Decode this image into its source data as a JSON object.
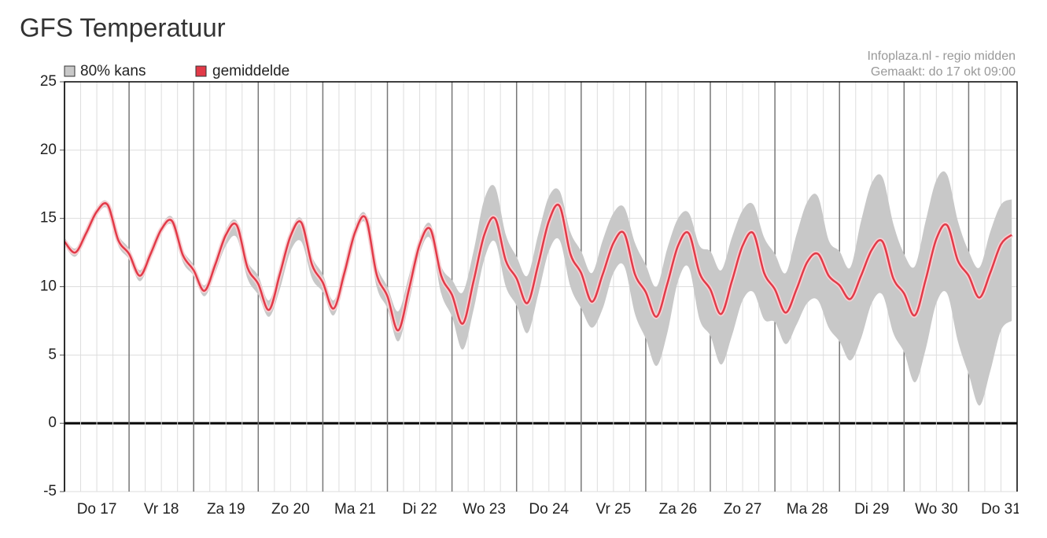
{
  "chart_data": {
    "type": "line",
    "title": "GFS Temperatuur",
    "annotations": [
      "Infoplaza.nl - regio midden",
      "Gemaakt: do 17 okt 09:00"
    ],
    "categories": [
      "Do 17",
      "Vr 18",
      "Za 19",
      "Zo 20",
      "Ma 21",
      "Di 22",
      "Wo 23",
      "Do 24",
      "Vr 25",
      "Za 26",
      "Zo 27",
      "Ma 28",
      "Di 29",
      "Wo 30",
      "Do 31"
    ],
    "xlim": [
      0,
      354
    ],
    "xticks": [
      0,
      6,
      12,
      18,
      24,
      30,
      36,
      42,
      48,
      54,
      60,
      66,
      72,
      78,
      84,
      90,
      96,
      102,
      108,
      114,
      120,
      126,
      132,
      138,
      144,
      150,
      156,
      162,
      168,
      174,
      180,
      186,
      192,
      198,
      204,
      210,
      216,
      222,
      228,
      234,
      240,
      246,
      252,
      258,
      264,
      270,
      276,
      282,
      288,
      294,
      300,
      306,
      312,
      318,
      324,
      330,
      336,
      342,
      348
    ],
    "ylim": [
      -5,
      25
    ],
    "yticks": [
      -5,
      0,
      5,
      10,
      15,
      20,
      25
    ],
    "grid": true,
    "x": [
      0,
      4,
      8,
      12,
      16,
      20,
      24,
      28,
      32,
      36,
      40,
      44,
      48,
      52,
      56,
      60,
      64,
      68,
      72,
      76,
      80,
      84,
      88,
      92,
      96,
      100,
      104,
      108,
      112,
      116,
      120,
      124,
      128,
      132,
      136,
      140,
      144,
      148,
      152,
      156,
      160,
      164,
      168,
      172,
      176,
      180,
      184,
      188,
      192,
      196,
      200,
      204,
      208,
      212,
      216,
      220,
      224,
      228,
      232,
      236,
      240,
      244,
      248,
      252,
      256,
      260,
      264,
      268,
      272,
      276,
      280,
      284,
      288,
      292,
      296,
      300,
      304,
      308,
      312,
      316,
      320,
      324,
      328,
      332,
      336,
      340,
      344,
      348,
      352
    ],
    "band": {
      "name": "80% kans",
      "color": "#c8c8c8",
      "low": [
        13.0,
        12.2,
        13.6,
        15.2,
        15.7,
        13.0,
        12.0,
        10.4,
        12.0,
        13.9,
        14.5,
        11.8,
        10.8,
        9.3,
        11.0,
        13.0,
        13.6,
        10.6,
        9.4,
        7.8,
        9.8,
        12.6,
        13.3,
        10.6,
        9.6,
        7.9,
        10.4,
        13.6,
        14.6,
        10.0,
        8.4,
        6.0,
        8.8,
        12.4,
        13.5,
        9.5,
        7.8,
        5.4,
        8.3,
        12.0,
        13.3,
        10.0,
        8.6,
        6.6,
        9.4,
        12.6,
        13.4,
        10.0,
        8.4,
        7.0,
        8.4,
        11.0,
        11.5,
        8.0,
        6.2,
        4.2,
        6.6,
        10.4,
        11.4,
        7.6,
        6.4,
        4.3,
        6.4,
        9.0,
        9.6,
        7.6,
        7.4,
        5.8,
        7.2,
        8.8,
        9.0,
        7.0,
        6.0,
        4.6,
        6.2,
        8.8,
        9.4,
        6.6,
        5.2,
        3.0,
        5.4,
        8.8,
        9.5,
        6.0,
        3.6,
        1.3,
        3.8,
        6.8,
        7.5
      ],
      "high": [
        13.6,
        12.8,
        14.2,
        15.8,
        16.2,
        13.8,
        12.8,
        11.2,
        12.8,
        14.5,
        15.1,
        12.7,
        11.6,
        10.1,
        12.0,
        14.2,
        14.8,
        11.9,
        10.8,
        9.0,
        11.4,
        14.1,
        15.0,
        12.2,
        10.9,
        9.0,
        11.5,
        14.5,
        15.3,
        11.6,
        10.0,
        8.2,
        10.8,
        13.6,
        14.6,
        11.5,
        10.5,
        9.6,
        12.6,
        16.4,
        17.3,
        13.8,
        12.2,
        10.8,
        13.8,
        16.6,
        17.0,
        14.0,
        12.6,
        11.0,
        13.4,
        15.4,
        15.8,
        13.2,
        11.6,
        10.0,
        12.8,
        15.0,
        15.4,
        13.0,
        12.6,
        11.2,
        13.6,
        15.6,
        16.0,
        13.6,
        12.4,
        11.0,
        13.8,
        16.2,
        16.6,
        13.4,
        12.6,
        11.4,
        14.8,
        17.6,
        18.0,
        14.6,
        12.4,
        11.5,
        14.8,
        17.8,
        18.2,
        14.8,
        12.6,
        11.4,
        14.0,
        16.0,
        16.4
      ]
    },
    "series": [
      {
        "name": "gemiddelde",
        "color": "#e23a48",
        "values": [
          13.3,
          12.5,
          13.9,
          15.5,
          16,
          13.4,
          12.4,
          10.8,
          12.4,
          14.2,
          14.8,
          12.3,
          11.2,
          9.7,
          11.6,
          13.8,
          14.5,
          11.4,
          10.2,
          8.3,
          10.9,
          13.7,
          14.7,
          11.6,
          10.3,
          8.4,
          11.0,
          14.0,
          15,
          10.9,
          9.3,
          6.8,
          9.8,
          13.1,
          14.2,
          10.8,
          9.4,
          7.3,
          10.4,
          13.8,
          15,
          11.9,
          10.6,
          8.8,
          11.6,
          14.8,
          15.9,
          12.4,
          11.0,
          8.9,
          10.9,
          13.2,
          13.9,
          10.9,
          9.6,
          7.8,
          10.2,
          13.0,
          13.9,
          11.0,
          9.8,
          8.0,
          10.4,
          13.0,
          13.9,
          11.0,
          9.8,
          8.1,
          9.8,
          11.8,
          12.4,
          10.8,
          10.1,
          9.1,
          10.8,
          12.7,
          13.3,
          10.6,
          9.5,
          7.9,
          10.5,
          13.5,
          14.5,
          11.9,
          10.8,
          9.2,
          11.0,
          13.1,
          13.8
        ]
      }
    ]
  }
}
